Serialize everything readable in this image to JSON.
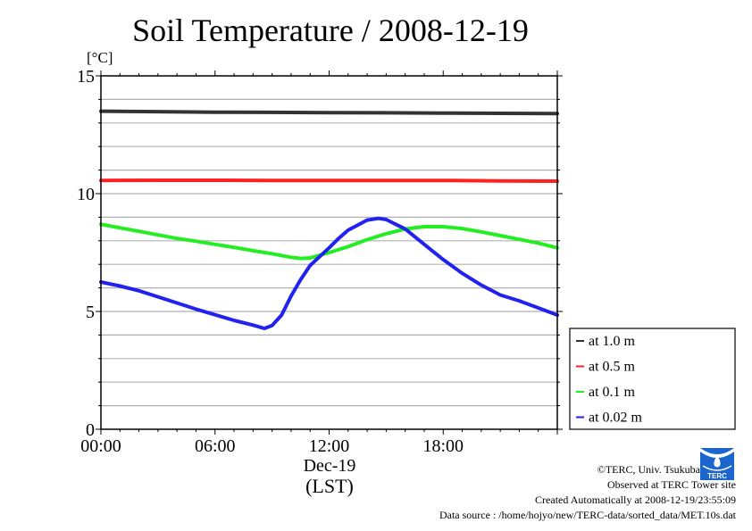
{
  "chart_data": {
    "type": "line",
    "title": "Soil Temperature / 2008-12-19",
    "ylabel": "[°C]",
    "xlabel": "(LST)",
    "date_label": "Dec-19",
    "ylim": [
      0,
      15
    ],
    "xlim": [
      0,
      24
    ],
    "yticks": [
      0,
      5,
      10,
      15
    ],
    "ytick_labels": [
      "0",
      "5",
      "10",
      "15"
    ],
    "xticks": [
      0,
      6,
      12,
      18
    ],
    "xtick_labels": [
      "00:00",
      "06:00",
      "12:00",
      "18:00"
    ],
    "grid": true,
    "grid_step": 1,
    "legend_position": "right-bottom-outside",
    "series": [
      {
        "name": "at 1.0 m",
        "color": "#333333",
        "x": [
          0,
          3,
          6,
          9,
          12,
          15,
          18,
          21,
          24
        ],
        "values": [
          13.5,
          13.48,
          13.46,
          13.45,
          13.44,
          13.43,
          13.42,
          13.41,
          13.4
        ]
      },
      {
        "name": "at 0.5 m",
        "color": "#ff2020",
        "x": [
          0,
          3,
          6,
          9,
          12,
          15,
          18,
          21,
          24
        ],
        "values": [
          10.56,
          10.57,
          10.57,
          10.56,
          10.56,
          10.56,
          10.56,
          10.54,
          10.53
        ]
      },
      {
        "name": "at 0.1 m",
        "color": "#22ee22",
        "x": [
          0,
          1,
          2,
          3,
          4,
          5,
          6,
          7,
          8,
          9,
          10,
          10.5,
          11,
          12,
          13,
          14,
          15,
          16,
          17,
          18,
          19,
          20,
          21,
          22,
          23,
          24
        ],
        "values": [
          8.7,
          8.55,
          8.4,
          8.25,
          8.1,
          7.98,
          7.85,
          7.72,
          7.58,
          7.45,
          7.3,
          7.25,
          7.27,
          7.5,
          7.75,
          8.05,
          8.3,
          8.5,
          8.6,
          8.6,
          8.52,
          8.38,
          8.22,
          8.06,
          7.9,
          7.7
        ]
      },
      {
        "name": "at 0.02 m",
        "color": "#2222ee",
        "x": [
          0,
          1,
          2,
          3,
          4,
          5,
          6,
          7,
          8,
          8.6,
          9,
          9.5,
          10,
          10.5,
          11,
          12,
          12.5,
          13,
          14,
          14.6,
          15,
          16,
          17,
          18,
          19,
          20,
          21,
          22,
          23,
          24
        ],
        "values": [
          6.25,
          6.08,
          5.88,
          5.62,
          5.36,
          5.1,
          4.86,
          4.62,
          4.42,
          4.28,
          4.4,
          4.85,
          5.65,
          6.35,
          6.95,
          7.7,
          8.1,
          8.45,
          8.88,
          8.95,
          8.9,
          8.5,
          7.85,
          7.2,
          6.62,
          6.12,
          5.7,
          5.45,
          5.15,
          4.85
        ]
      }
    ]
  },
  "credits": {
    "copyright": "©TERC, Univ. Tsukuba",
    "observed": "Observed at TERC Tower site",
    "created": "Created Automatically at 2008-12-19/23:55:09",
    "source": "Data source : /home/hojyo/new/TERC-data/sorted_data/MET.10s.dat",
    "logo_text": "TERC"
  }
}
